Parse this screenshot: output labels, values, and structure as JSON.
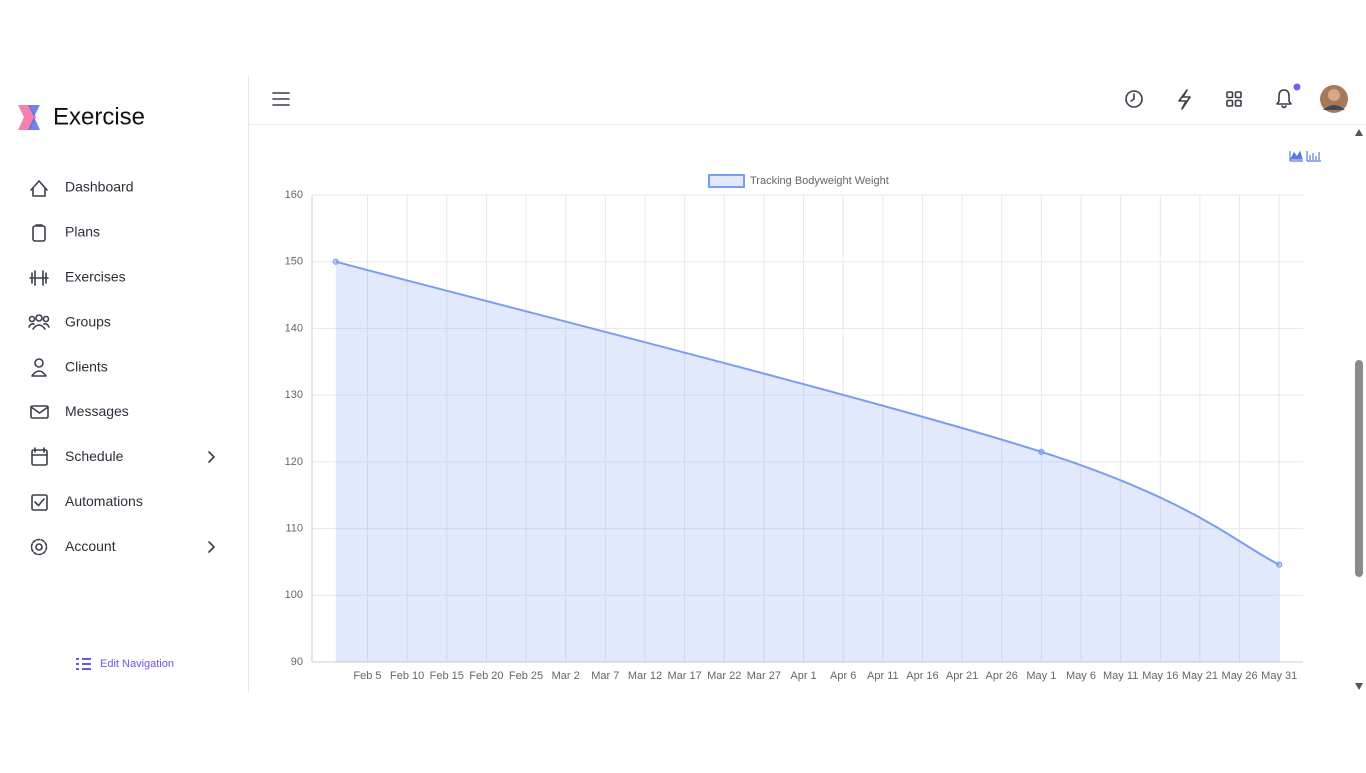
{
  "sidebar": {
    "brand": "Exercise",
    "nav": [
      "Dashboard",
      "Plans",
      "Exercises",
      "Groups",
      "Clients",
      "Messages",
      "Schedule",
      "Automations",
      "Account"
    ],
    "edit_navigation": "Edit Navigation"
  },
  "chart_data": {
    "type": "line",
    "x": [
      "Feb 1",
      "May 1",
      "May 31"
    ],
    "series": [
      {
        "name": "Tracking Bodyweight Weight",
        "color": "#7b9df0",
        "values": [
          150,
          121.5,
          104.6
        ]
      }
    ],
    "xlim": [
      "Jan 29",
      "Jun 3"
    ],
    "xticks": [
      "Feb 5",
      "Feb 10",
      "Feb 15",
      "Feb 20",
      "Feb 25",
      "Mar 2",
      "Mar 7",
      "Mar 12",
      "Mar 17",
      "Mar 22",
      "Mar 27",
      "Apr 1",
      "Apr 6",
      "Apr 11",
      "Apr 16",
      "Apr 21",
      "Apr 26",
      "May 1",
      "May 6",
      "May 11",
      "May 16",
      "May 21",
      "May 26",
      "May 31"
    ],
    "ylim": [
      90,
      160
    ],
    "yticks": [
      90,
      100,
      110,
      120,
      130,
      140,
      150,
      160
    ],
    "grid": true,
    "fill": true
  }
}
